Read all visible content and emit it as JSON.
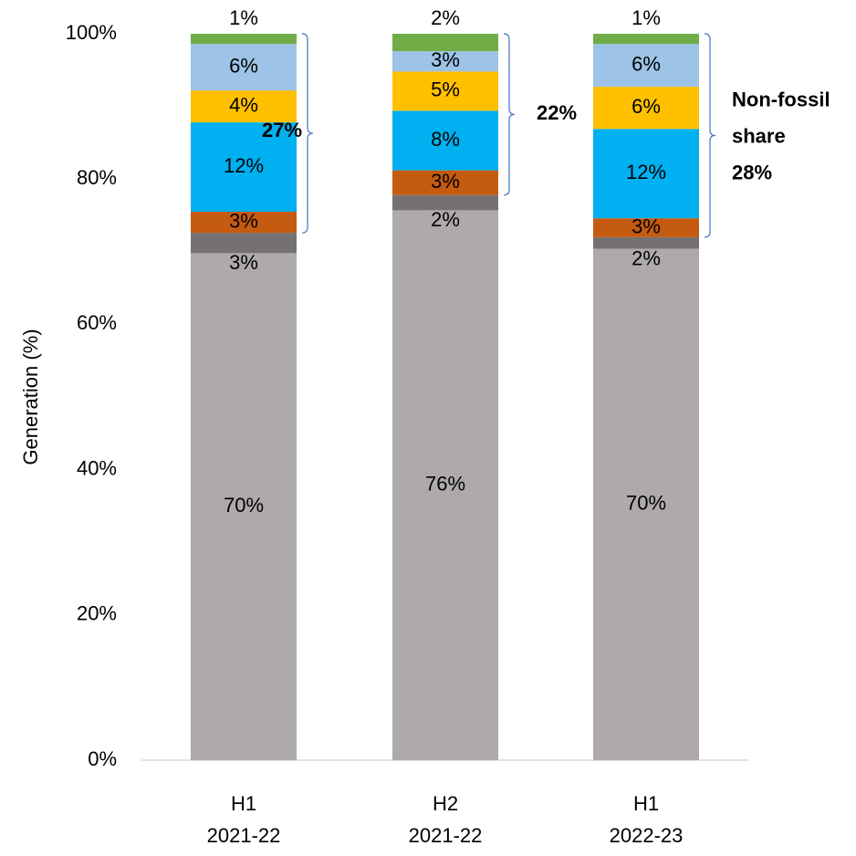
{
  "chart_data": {
    "type": "stacked_bar",
    "y_label": "Generation (%)",
    "categories": [
      [
        "H1",
        "2021-22"
      ],
      [
        "H2",
        "2021-22"
      ],
      [
        "H1",
        "2022-23"
      ]
    ],
    "ylim": [
      0,
      100
    ],
    "yticks": [
      {
        "value": 0,
        "label": "0%"
      },
      {
        "value": 20,
        "label": "20%"
      },
      {
        "value": 40,
        "label": "40%"
      },
      {
        "value": 60,
        "label": "60%"
      },
      {
        "value": 80,
        "label": "80%"
      },
      {
        "value": 100,
        "label": "100%"
      }
    ],
    "series": [
      {
        "color": "#aeaaaa",
        "values": [
          69.8,
          75.7,
          70.4
        ],
        "value_labels": [
          "70%",
          "76%",
          "70%"
        ]
      },
      {
        "color": "#767171",
        "values": [
          2.8,
          2.1,
          1.6
        ],
        "value_labels": [
          "3%",
          "2%",
          "2%"
        ]
      },
      {
        "color": "#c55a11",
        "values": [
          2.9,
          3.4,
          2.6
        ],
        "value_labels": [
          "3%",
          "3%",
          "3%"
        ]
      },
      {
        "color": "#00b0f0",
        "values": [
          12.3,
          8.2,
          12.3
        ],
        "value_labels": [
          "12%",
          "8%",
          "12%"
        ]
      },
      {
        "color": "#ffc000",
        "values": [
          4.4,
          5.4,
          5.8
        ],
        "value_labels": [
          "4%",
          "5%",
          "6%"
        ]
      },
      {
        "color": "#9dc3e6",
        "values": [
          6.4,
          2.8,
          5.9
        ],
        "value_labels": [
          "6%",
          "3%",
          "6%"
        ]
      },
      {
        "color": "#70ad47",
        "values": [
          1.4,
          2.4,
          1.4
        ],
        "value_labels": [
          "1%",
          "2%",
          "1%"
        ]
      }
    ],
    "annotations": [
      [
        "27%"
      ],
      [
        "22%"
      ],
      [
        "Non-fossil",
        "share",
        "28%"
      ]
    ]
  }
}
